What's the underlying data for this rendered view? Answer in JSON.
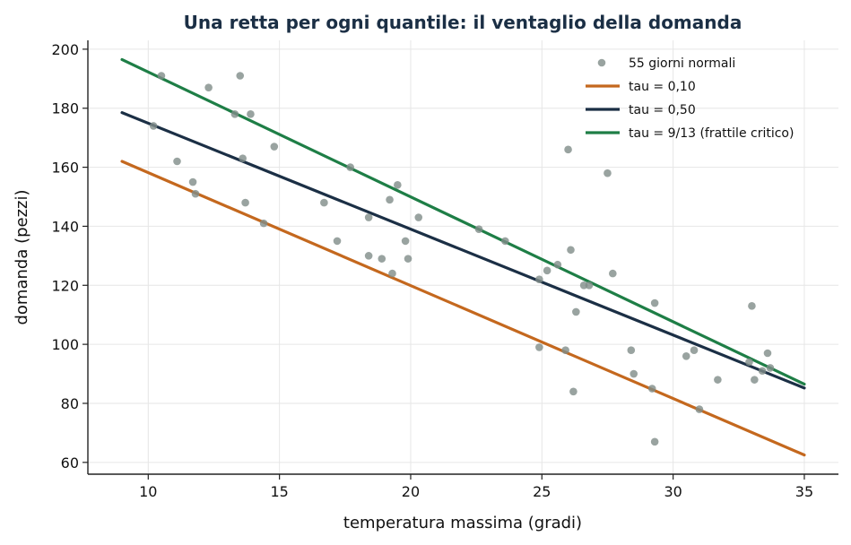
{
  "chart_data": {
    "type": "scatter",
    "title": "Una retta per ogni quantile: il ventaglio della domanda",
    "xlabel": "temperatura massima (gradi)",
    "ylabel": "domanda (pezzi)",
    "xlim": [
      7.7,
      36.3
    ],
    "ylim": [
      56,
      203
    ],
    "xticks": [
      10,
      15,
      20,
      25,
      30,
      35
    ],
    "yticks": [
      60,
      80,
      100,
      120,
      140,
      160,
      180,
      200
    ],
    "grid": true,
    "legend_position": "top-right",
    "scatter": {
      "name": "55 giorni normali",
      "color": "#808c88",
      "points": [
        [
          10.5,
          191
        ],
        [
          10.2,
          174
        ],
        [
          11.1,
          162
        ],
        [
          11.7,
          155
        ],
        [
          11.8,
          151
        ],
        [
          12.3,
          187
        ],
        [
          13.3,
          178
        ],
        [
          13.5,
          191
        ],
        [
          13.6,
          163
        ],
        [
          13.7,
          148
        ],
        [
          13.9,
          178
        ],
        [
          14.4,
          141
        ],
        [
          14.8,
          167
        ],
        [
          16.7,
          148
        ],
        [
          17.2,
          135
        ],
        [
          17.7,
          160
        ],
        [
          18.4,
          143
        ],
        [
          18.4,
          130
        ],
        [
          18.9,
          129
        ],
        [
          19.2,
          149
        ],
        [
          19.3,
          124
        ],
        [
          19.5,
          154
        ],
        [
          19.8,
          135
        ],
        [
          19.9,
          129
        ],
        [
          20.3,
          143
        ],
        [
          22.6,
          139
        ],
        [
          23.6,
          135
        ],
        [
          24.9,
          122
        ],
        [
          24.9,
          99
        ],
        [
          25.2,
          125
        ],
        [
          25.6,
          127
        ],
        [
          25.9,
          98
        ],
        [
          26.0,
          166
        ],
        [
          26.1,
          132
        ],
        [
          26.2,
          84
        ],
        [
          26.3,
          111
        ],
        [
          26.6,
          120
        ],
        [
          26.8,
          120
        ],
        [
          27.5,
          158
        ],
        [
          27.7,
          124
        ],
        [
          28.4,
          98
        ],
        [
          28.5,
          90
        ],
        [
          29.2,
          85
        ],
        [
          29.3,
          114
        ],
        [
          29.3,
          67
        ],
        [
          30.5,
          96
        ],
        [
          30.8,
          98
        ],
        [
          31.0,
          78
        ],
        [
          31.7,
          88
        ],
        [
          33.0,
          113
        ],
        [
          33.1,
          88
        ],
        [
          33.4,
          91
        ],
        [
          33.6,
          97
        ],
        [
          33.7,
          92
        ],
        [
          32.9,
          94
        ]
      ]
    },
    "series": [
      {
        "name": "tau = 0,10",
        "color": "#c4681e",
        "x": [
          9,
          35
        ],
        "y": [
          162,
          62.5
        ]
      },
      {
        "name": "tau = 0,50",
        "color": "#1b2f45",
        "x": [
          9,
          35
        ],
        "y": [
          178.5,
          85.2
        ]
      },
      {
        "name": "tau = 9/13 (frattile critico)",
        "color": "#1e7e46",
        "x": [
          9,
          35
        ],
        "y": [
          196.5,
          86.5
        ]
      }
    ]
  }
}
